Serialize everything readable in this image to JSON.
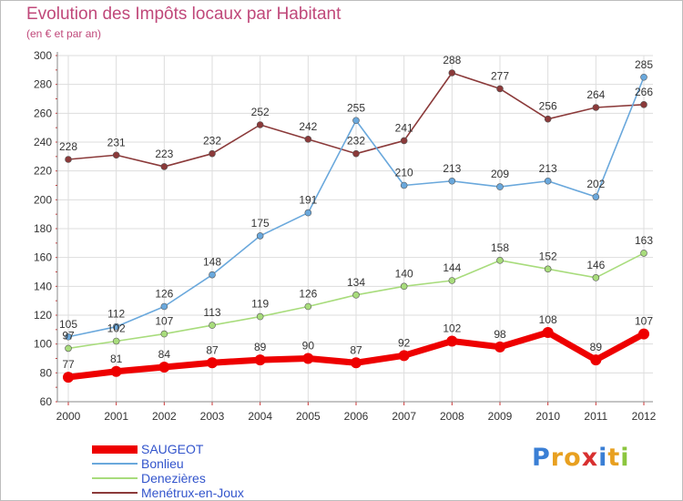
{
  "title": "Evolution des Impôts locaux par Habitant",
  "subtitle": "(en € et par an)",
  "logo": {
    "letters": [
      {
        "char": "P",
        "color": "#3a7fd5"
      },
      {
        "char": "r",
        "color": "#e8a020"
      },
      {
        "char": "o",
        "color": "#e8a020"
      },
      {
        "char": "x",
        "color": "#d83030"
      },
      {
        "char": "i",
        "color": "#3a7fd5"
      },
      {
        "char": "t",
        "color": "#e8a020"
      },
      {
        "char": "i",
        "color": "#8cc63f"
      }
    ]
  },
  "chart_data": {
    "type": "line",
    "x": [
      "2000",
      "2001",
      "2002",
      "2003",
      "2004",
      "2005",
      "2006",
      "2007",
      "2008",
      "2009",
      "2010",
      "2011",
      "2012"
    ],
    "ylim": [
      60,
      300
    ],
    "yticks": [
      60,
      80,
      100,
      120,
      140,
      160,
      180,
      200,
      220,
      240,
      260,
      280,
      300
    ],
    "grid": true,
    "legend_position": "bottom-left",
    "series": [
      {
        "name": "SAUGEOT",
        "color": "#ee0000",
        "values": [
          77,
          81,
          84,
          87,
          89,
          90,
          87,
          92,
          102,
          98,
          108,
          89,
          107
        ]
      },
      {
        "name": "Bonlieu",
        "color": "#6aa8dc",
        "values": [
          105,
          112,
          126,
          148,
          175,
          191,
          255,
          210,
          213,
          209,
          213,
          202,
          285
        ]
      },
      {
        "name": "Denezières",
        "color": "#a8dc7c",
        "values": [
          97,
          102,
          107,
          113,
          119,
          126,
          134,
          140,
          144,
          158,
          152,
          146,
          163
        ]
      },
      {
        "name": "Menétrux-en-Joux",
        "color": "#8b3a3a",
        "values": [
          228,
          231,
          223,
          232,
          252,
          242,
          232,
          241,
          288,
          277,
          256,
          264,
          266
        ]
      }
    ]
  }
}
